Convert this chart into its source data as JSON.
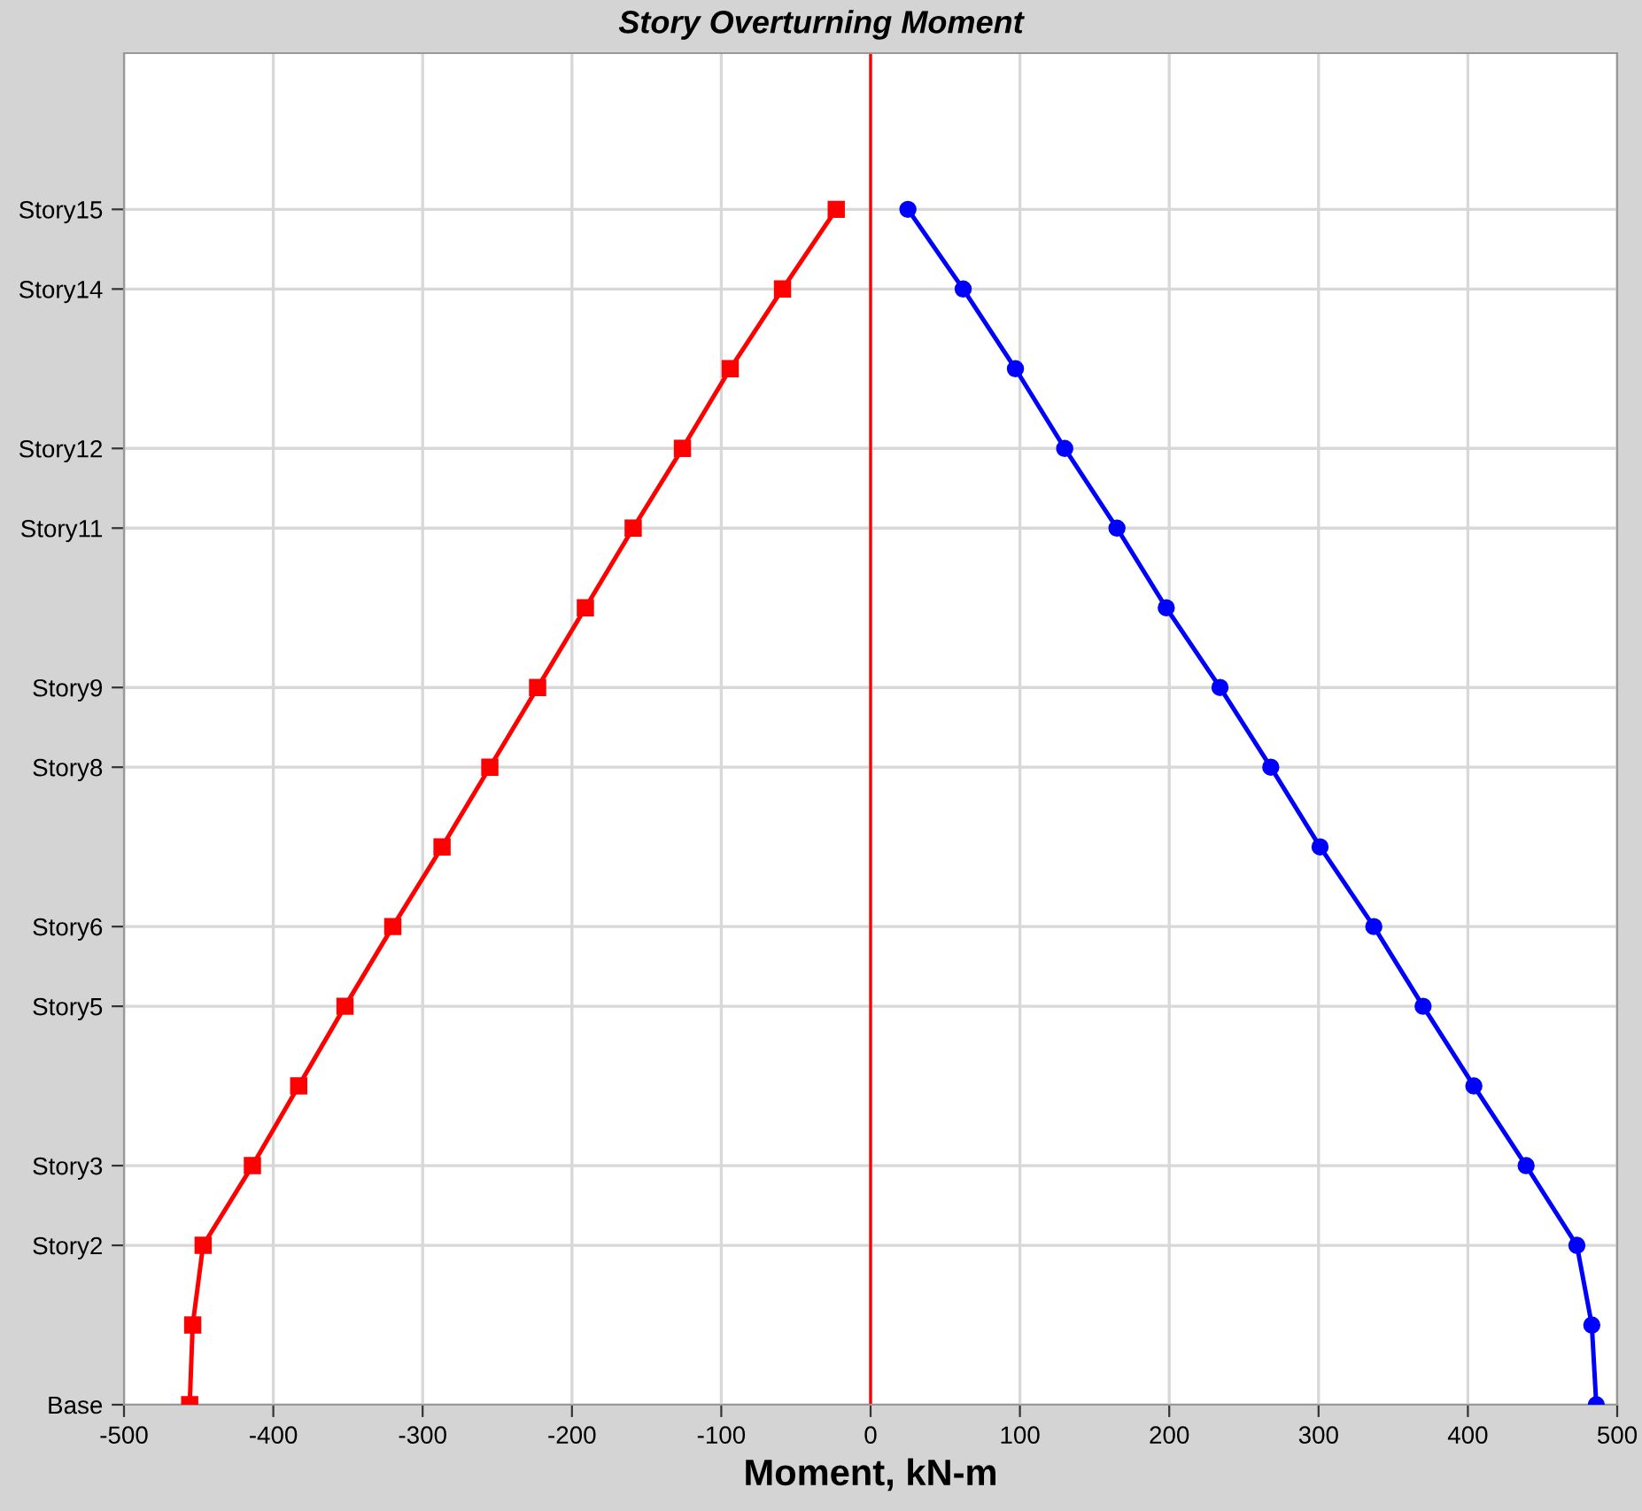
{
  "chart_data": {
    "type": "line",
    "orientation": "horizontal",
    "title": "Story Overturning Moment",
    "xlabel": "Moment, kN-m",
    "categories": [
      "Story15",
      "Story14",
      null,
      "Story12",
      "Story11",
      null,
      "Story9",
      "Story8",
      null,
      "Story6",
      "Story5",
      null,
      "Story3",
      "Story2",
      null,
      "Base"
    ],
    "series": [
      {
        "color": "#ff0000",
        "marker": "square",
        "values": [
          -23,
          -59,
          -94,
          -126,
          -159,
          -191,
          -223,
          -255,
          -287,
          -320,
          -352,
          -383,
          -414,
          -447,
          -454,
          -456
        ]
      },
      {
        "color": "#0000ff",
        "marker": "circle",
        "values": [
          25,
          62,
          97,
          130,
          165,
          198,
          234,
          268,
          301,
          337,
          370,
          404,
          439,
          473,
          483,
          486
        ]
      }
    ],
    "xlim": [
      -500,
      500
    ],
    "xticks": [
      -500,
      -400,
      -300,
      -200,
      -100,
      0,
      100,
      200,
      300,
      400,
      500
    ],
    "ref_lines": [
      {
        "axis": "x",
        "value": 0,
        "color": "#ff0000"
      }
    ],
    "grid": true,
    "line_style": "solid"
  }
}
